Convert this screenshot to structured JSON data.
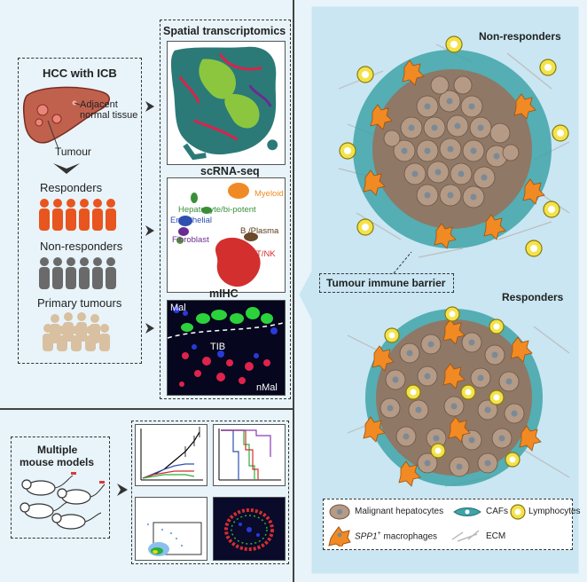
{
  "left": {
    "hcc_title": "HCC with ICB",
    "liver_annot_1": "Adjacent",
    "liver_annot_2": "normal tissue",
    "tumour_label": "Tumour",
    "groups": [
      {
        "label": "Responders",
        "color": "#e8551f"
      },
      {
        "label": "Non-responders",
        "color": "#6a6a6a"
      },
      {
        "label": "Primary tumours",
        "color": "#d8c0a0"
      }
    ]
  },
  "methods": {
    "spatial_title": "Spatial transcriptomics",
    "scrna_title": "scRNA-seq",
    "scrna_labels": {
      "myeloid": "Myeloid",
      "hepatocyte": "Hepatocyte/bi-potent",
      "endothelial": "Endothelial",
      "fibroblast": "Fibroblast",
      "bplasma": "B /Plasma",
      "tnk": "T/NK"
    },
    "mihc_title": "mIHC",
    "mihc_labels": {
      "mal": "Mal",
      "tib": "TIB",
      "nmal": "nMal"
    }
  },
  "bottom": {
    "mouse_title_1": "Multiple",
    "mouse_title_2": "mouse models"
  },
  "right": {
    "nonresponders": "Non-responders",
    "responders": "Responders",
    "barrier": "Tumour immune barrier",
    "legend": {
      "malignant": "Malignant hepatocytes",
      "cafs": "CAFs",
      "lymphocytes": "Lymphocytes",
      "spp1": "SPP1",
      "spp1_sup": "+",
      "macrophages": " macrophages",
      "ecm": "ECM"
    }
  },
  "colors": {
    "background": "#e8f4fa",
    "right_panel": "#c9e6f2",
    "hepatocyte": "#b59a86",
    "caf": "#3fa3a8",
    "lymphocyte": "#f3e34a",
    "macrophage": "#f28a24",
    "ecm": "#bdbdbd"
  }
}
